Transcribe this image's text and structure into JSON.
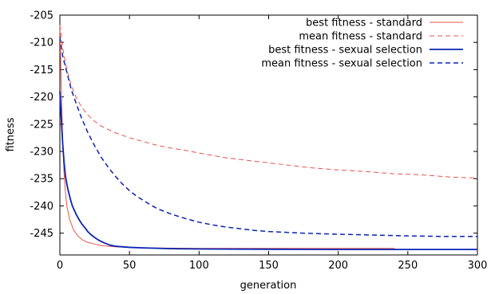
{
  "chart_data": {
    "type": "line",
    "xlabel": "generation",
    "ylabel": "fitness",
    "xlim": [
      0,
      300
    ],
    "ylim": [
      -249,
      -205
    ],
    "x_ticks": [
      "0",
      "50",
      "100",
      "150",
      "200",
      "250",
      "300"
    ],
    "y_ticks": [
      "-205",
      "-210",
      "-215",
      "-220",
      "-225",
      "-230",
      "-235",
      "-240",
      "-245"
    ],
    "x_tick_values": [
      0,
      50,
      100,
      150,
      200,
      250,
      300
    ],
    "y_tick_values": [
      -205,
      -210,
      -215,
      -220,
      -225,
      -230,
      -235,
      -240,
      -245
    ],
    "grid": false,
    "legend_position": "top-right",
    "series": [
      {
        "name": "best fitness - standard",
        "color": "#e8524a",
        "dash": "solid",
        "width": 1,
        "points": [
          [
            0,
            -207
          ],
          [
            1,
            -218
          ],
          [
            2,
            -228
          ],
          [
            3,
            -234
          ],
          [
            4,
            -237.5
          ],
          [
            5,
            -240
          ],
          [
            7,
            -242.5
          ],
          [
            10,
            -244.5
          ],
          [
            13,
            -245.5
          ],
          [
            16,
            -246.2
          ],
          [
            20,
            -246.7
          ],
          [
            25,
            -247
          ],
          [
            30,
            -247.3
          ],
          [
            40,
            -247.5
          ],
          [
            60,
            -247.7
          ],
          [
            100,
            -247.8
          ],
          [
            150,
            -247.8
          ],
          [
            200,
            -247.8
          ],
          [
            240,
            -247.8
          ],
          [
            241,
            -248
          ],
          [
            300,
            -248
          ]
        ]
      },
      {
        "name": "mean fitness - standard",
        "color": "#e8524a",
        "dash": "dashed",
        "width": 1,
        "points": [
          [
            0,
            -206.8
          ],
          [
            2,
            -211
          ],
          [
            5,
            -215
          ],
          [
            8,
            -217.8
          ],
          [
            12,
            -220.3
          ],
          [
            16,
            -222
          ],
          [
            20,
            -223.3
          ],
          [
            25,
            -224.5
          ],
          [
            30,
            -225.4
          ],
          [
            40,
            -226.6
          ],
          [
            50,
            -227.5
          ],
          [
            60,
            -228.2
          ],
          [
            70,
            -228.9
          ],
          [
            80,
            -229.4
          ],
          [
            90,
            -229.8
          ],
          [
            100,
            -230.3
          ],
          [
            120,
            -231.2
          ],
          [
            140,
            -231.8
          ],
          [
            160,
            -232.4
          ],
          [
            180,
            -233
          ],
          [
            200,
            -233.4
          ],
          [
            220,
            -233.7
          ],
          [
            240,
            -234.1
          ],
          [
            260,
            -234.3
          ],
          [
            280,
            -234.7
          ],
          [
            300,
            -234.9
          ]
        ]
      },
      {
        "name": "best fitness - sexual selection",
        "color": "#0b22b5",
        "dash": "solid",
        "width": 1.8,
        "points": [
          [
            0,
            -219
          ],
          [
            1,
            -224
          ],
          [
            2,
            -228.5
          ],
          [
            3,
            -232
          ],
          [
            4,
            -234.5
          ],
          [
            5,
            -236
          ],
          [
            6,
            -237.2
          ],
          [
            7,
            -238.2
          ],
          [
            8,
            -239.2
          ],
          [
            9,
            -240
          ],
          [
            10,
            -240.6
          ],
          [
            12,
            -241.7
          ],
          [
            14,
            -242.6
          ],
          [
            16,
            -243.4
          ],
          [
            18,
            -244
          ],
          [
            20,
            -244.7
          ],
          [
            22,
            -245.2
          ],
          [
            25,
            -245.8
          ],
          [
            28,
            -246.3
          ],
          [
            32,
            -246.8
          ],
          [
            36,
            -247.2
          ],
          [
            40,
            -247.4
          ],
          [
            50,
            -247.6
          ],
          [
            60,
            -247.7
          ],
          [
            80,
            -247.85
          ],
          [
            100,
            -247.9
          ],
          [
            150,
            -247.95
          ],
          [
            200,
            -248
          ],
          [
            300,
            -248
          ]
        ]
      },
      {
        "name": "mean fitness - sexual selection",
        "color": "#0b22b5",
        "dash": "dashed",
        "width": 1.5,
        "points": [
          [
            0,
            -209
          ],
          [
            2,
            -212.5
          ],
          [
            5,
            -215.5
          ],
          [
            8,
            -218.5
          ],
          [
            10,
            -220
          ],
          [
            15,
            -223.5
          ],
          [
            20,
            -226.5
          ],
          [
            25,
            -229
          ],
          [
            30,
            -231.2
          ],
          [
            35,
            -233
          ],
          [
            40,
            -234.6
          ],
          [
            45,
            -236
          ],
          [
            50,
            -237.2
          ],
          [
            55,
            -238.2
          ],
          [
            60,
            -239
          ],
          [
            65,
            -239.8
          ],
          [
            70,
            -240.5
          ],
          [
            75,
            -241
          ],
          [
            80,
            -241.5
          ],
          [
            90,
            -242.3
          ],
          [
            100,
            -243
          ],
          [
            110,
            -243.5
          ],
          [
            120,
            -243.9
          ],
          [
            130,
            -244.2
          ],
          [
            140,
            -244.5
          ],
          [
            150,
            -244.7
          ],
          [
            175,
            -245
          ],
          [
            200,
            -245.2
          ],
          [
            225,
            -245.35
          ],
          [
            250,
            -245.5
          ],
          [
            275,
            -245.6
          ],
          [
            300,
            -245.6
          ]
        ]
      }
    ]
  }
}
